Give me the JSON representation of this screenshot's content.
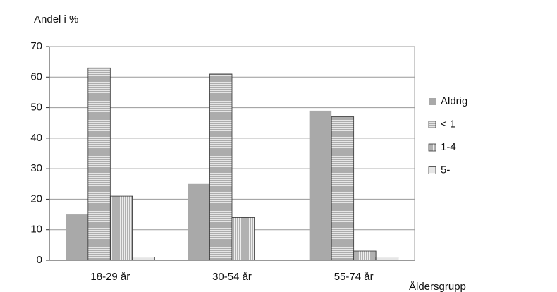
{
  "chart_data": {
    "type": "bar",
    "y_label": "Andel i %",
    "x_label": "Åldersgrupp",
    "categories": [
      "18-29 år",
      "30-54 år",
      "55-74 år"
    ],
    "series": [
      {
        "name": "Aldrig",
        "color": "#a9a9a9",
        "pattern": "solid",
        "values": [
          15,
          25,
          49
        ]
      },
      {
        "name": "< 1",
        "color": "#d8d8d8",
        "pattern": "horizontal",
        "values": [
          63,
          61,
          47
        ]
      },
      {
        "name": "1-4",
        "color": "#e4e4e4",
        "pattern": "vertical",
        "values": [
          21,
          14,
          3
        ]
      },
      {
        "name": "5-",
        "color": "#f4f4f4",
        "pattern": "fine",
        "values": [
          1,
          0,
          1
        ]
      }
    ],
    "ylim": [
      0,
      70
    ],
    "yticks": [
      0,
      10,
      20,
      30,
      40,
      50,
      60,
      70
    ],
    "grid": true,
    "legend": "right"
  }
}
